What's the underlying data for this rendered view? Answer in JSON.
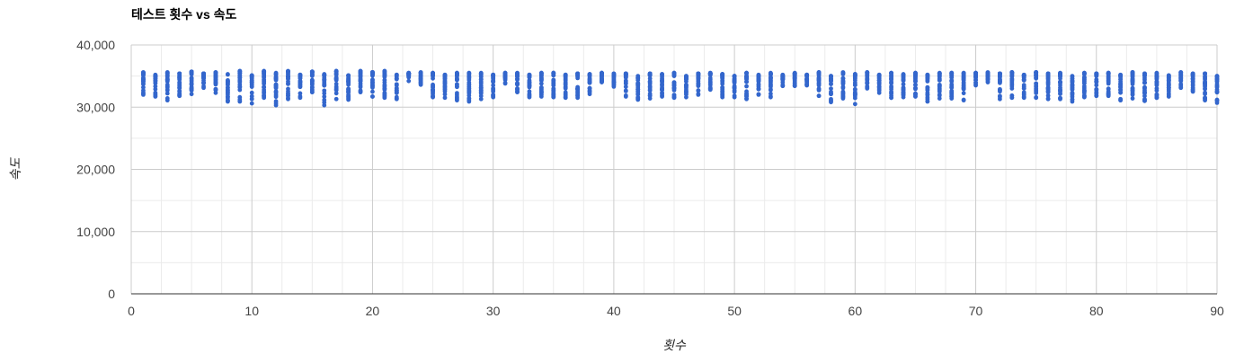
{
  "chart_data": {
    "type": "scatter",
    "title": "테스트 횟수 vs 속도",
    "xlabel": "횟수",
    "ylabel": "속도",
    "xlim": [
      0,
      90
    ],
    "ylim": [
      0,
      40000
    ],
    "x_ticks": [
      0,
      10,
      20,
      30,
      40,
      50,
      60,
      70,
      80,
      90
    ],
    "x_tick_labels": [
      "0",
      "10",
      "20",
      "30",
      "40",
      "50",
      "60",
      "70",
      "80",
      "90"
    ],
    "y_ticks": [
      0,
      10000,
      20000,
      30000,
      40000
    ],
    "y_tick_labels": [
      "0",
      "10,000",
      "20,000",
      "30,000",
      "40,000"
    ],
    "grid": true,
    "legend": "none",
    "point_color": "#3366cc",
    "series": [
      {
        "ranges": [
          [
            1,
            32000,
            35600
          ],
          [
            2,
            31700,
            35200
          ],
          [
            3,
            31100,
            35600
          ],
          [
            4,
            31800,
            35400
          ],
          [
            5,
            32100,
            35700
          ],
          [
            6,
            33100,
            35400
          ],
          [
            7,
            32300,
            35600
          ],
          [
            8,
            30900,
            35300
          ],
          [
            9,
            30900,
            35800
          ],
          [
            10,
            30600,
            35100
          ],
          [
            11,
            31500,
            35800
          ],
          [
            12,
            30300,
            35500
          ],
          [
            13,
            31300,
            35800
          ],
          [
            14,
            31500,
            35200
          ],
          [
            15,
            32400,
            35700
          ],
          [
            16,
            30300,
            35300
          ],
          [
            17,
            31300,
            35800
          ],
          [
            18,
            31200,
            35100
          ],
          [
            19,
            32400,
            35800
          ],
          [
            20,
            31700,
            35600
          ],
          [
            21,
            31500,
            35800
          ],
          [
            22,
            31300,
            35200
          ],
          [
            23,
            34200,
            35500
          ],
          [
            24,
            33600,
            35600
          ],
          [
            25,
            31600,
            35500
          ],
          [
            26,
            31500,
            35200
          ],
          [
            27,
            31100,
            35500
          ],
          [
            28,
            30900,
            35500
          ],
          [
            29,
            31300,
            35500
          ],
          [
            30,
            31600,
            35200
          ],
          [
            31,
            33800,
            35500
          ],
          [
            32,
            32400,
            35500
          ],
          [
            33,
            31600,
            35200
          ],
          [
            34,
            31700,
            35500
          ],
          [
            35,
            31600,
            35500
          ],
          [
            36,
            31500,
            35200
          ],
          [
            37,
            31500,
            35400
          ],
          [
            38,
            32100,
            35300
          ],
          [
            39,
            34000,
            35500
          ],
          [
            40,
            33300,
            35400
          ],
          [
            41,
            31700,
            35400
          ],
          [
            42,
            31200,
            35000
          ],
          [
            43,
            31400,
            35400
          ],
          [
            44,
            31700,
            35300
          ],
          [
            45,
            31500,
            35500
          ],
          [
            46,
            31600,
            35000
          ],
          [
            47,
            32000,
            35400
          ],
          [
            48,
            32800,
            35500
          ],
          [
            49,
            31600,
            35300
          ],
          [
            50,
            31600,
            35000
          ],
          [
            51,
            31300,
            35500
          ],
          [
            52,
            32000,
            35200
          ],
          [
            53,
            31600,
            35500
          ],
          [
            54,
            33400,
            35200
          ],
          [
            55,
            33400,
            35500
          ],
          [
            56,
            33500,
            35200
          ],
          [
            57,
            31800,
            35600
          ],
          [
            58,
            30800,
            35000
          ],
          [
            59,
            31400,
            35600
          ],
          [
            60,
            30500,
            35300
          ],
          [
            61,
            33000,
            35600
          ],
          [
            62,
            32300,
            35200
          ],
          [
            63,
            31500,
            35500
          ],
          [
            64,
            31600,
            35300
          ],
          [
            65,
            31700,
            35500
          ],
          [
            66,
            30900,
            35200
          ],
          [
            67,
            31400,
            35500
          ],
          [
            68,
            31400,
            35500
          ],
          [
            69,
            31100,
            35500
          ],
          [
            70,
            33500,
            35500
          ],
          [
            71,
            34000,
            35600
          ],
          [
            72,
            31300,
            35400
          ],
          [
            73,
            31500,
            35600
          ],
          [
            74,
            31500,
            35200
          ],
          [
            75,
            31500,
            35600
          ],
          [
            76,
            31300,
            35400
          ],
          [
            77,
            31300,
            35500
          ],
          [
            78,
            30900,
            35000
          ],
          [
            79,
            31600,
            35500
          ],
          [
            80,
            31800,
            35400
          ],
          [
            81,
            31800,
            35500
          ],
          [
            82,
            31100,
            35200
          ],
          [
            83,
            31400,
            35600
          ],
          [
            84,
            31000,
            35400
          ],
          [
            85,
            31500,
            35500
          ],
          [
            86,
            31700,
            35100
          ],
          [
            87,
            33100,
            35600
          ],
          [
            88,
            32500,
            35400
          ],
          [
            89,
            31100,
            35400
          ],
          [
            90,
            30700,
            35000
          ]
        ]
      }
    ]
  }
}
